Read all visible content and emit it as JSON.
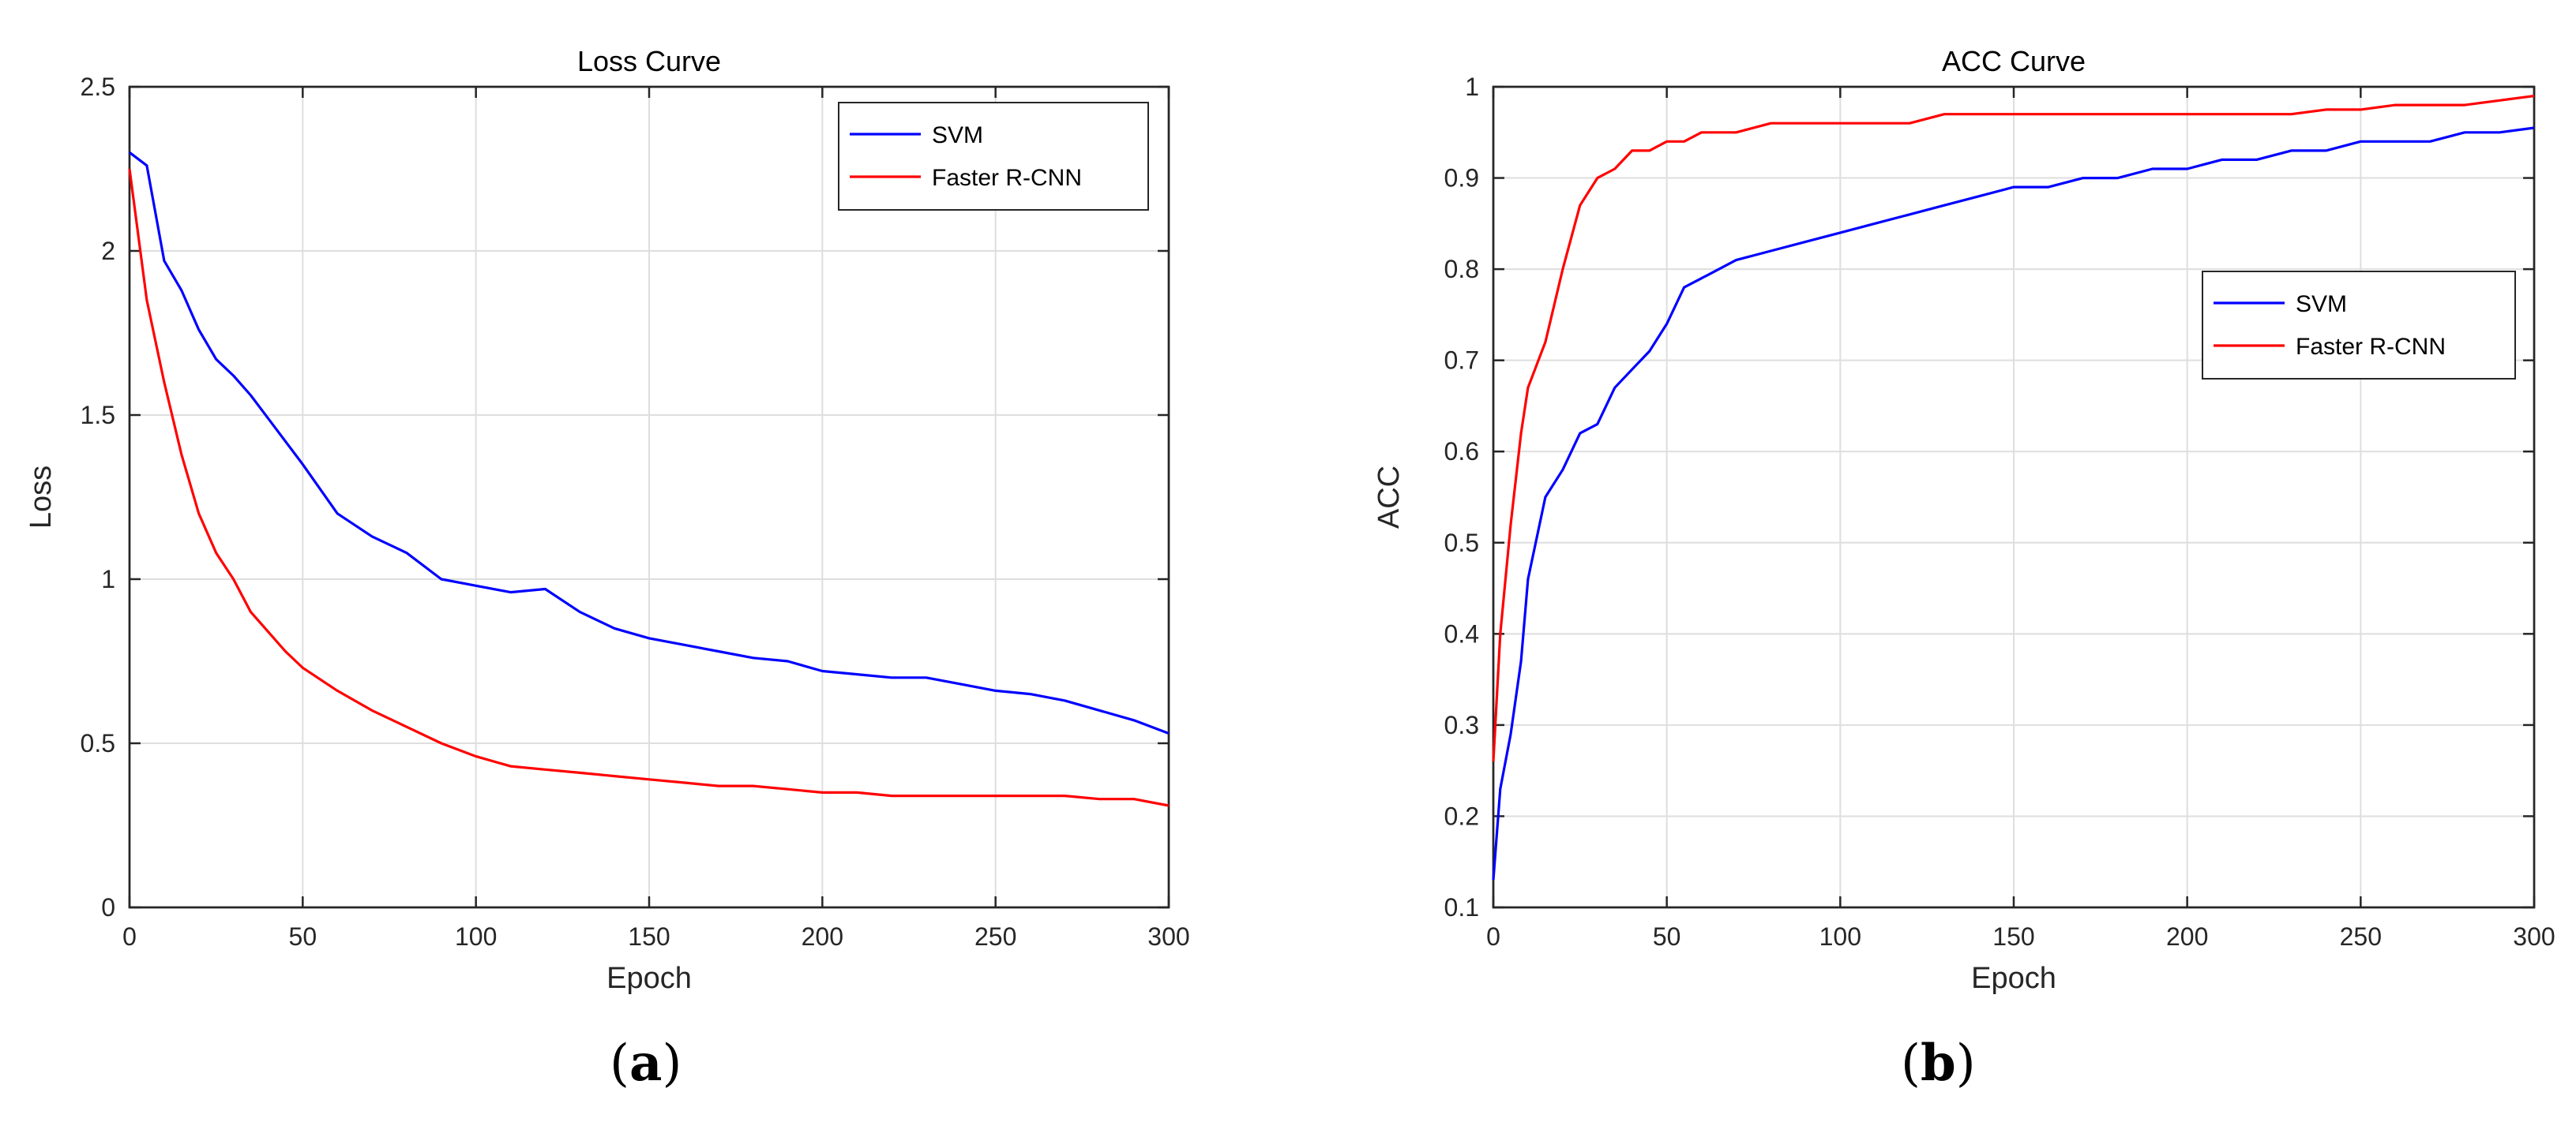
{
  "captions": {
    "a_open": "(",
    "a_letter": "a",
    "a_close": ")",
    "b_open": "(",
    "b_letter": "b",
    "b_close": ")"
  },
  "chart_data": [
    {
      "type": "line",
      "title": "Loss Curve",
      "xlabel": "Epoch",
      "ylabel": "Loss",
      "xlim": [
        0,
        300
      ],
      "ylim": [
        0,
        2.5
      ],
      "xticks": [
        "0",
        "50",
        "100",
        "150",
        "200",
        "250",
        "300"
      ],
      "yticks": [
        "0",
        "0.5",
        "1",
        "1.5",
        "2",
        "2.5"
      ],
      "grid": true,
      "legend_position": "top-right",
      "x": [
        0,
        5,
        10,
        15,
        20,
        25,
        30,
        35,
        40,
        45,
        50,
        60,
        70,
        80,
        90,
        100,
        110,
        120,
        130,
        140,
        150,
        160,
        170,
        180,
        190,
        200,
        210,
        220,
        230,
        240,
        250,
        260,
        270,
        280,
        290,
        300
      ],
      "series": [
        {
          "name": "SVM",
          "color": "#0000ff",
          "values": [
            2.3,
            2.26,
            1.97,
            1.88,
            1.76,
            1.67,
            1.62,
            1.56,
            1.49,
            1.42,
            1.35,
            1.2,
            1.13,
            1.08,
            1.0,
            0.98,
            0.96,
            0.97,
            0.9,
            0.85,
            0.82,
            0.8,
            0.78,
            0.76,
            0.75,
            0.72,
            0.71,
            0.7,
            0.7,
            0.68,
            0.66,
            0.65,
            0.63,
            0.6,
            0.57,
            0.53
          ]
        },
        {
          "name": "Faster R-CNN",
          "color": "#ff0000",
          "values": [
            2.25,
            1.85,
            1.6,
            1.38,
            1.2,
            1.08,
            1.0,
            0.9,
            0.84,
            0.78,
            0.73,
            0.66,
            0.6,
            0.55,
            0.5,
            0.46,
            0.43,
            0.42,
            0.41,
            0.4,
            0.39,
            0.38,
            0.37,
            0.37,
            0.36,
            0.35,
            0.35,
            0.34,
            0.34,
            0.34,
            0.34,
            0.34,
            0.34,
            0.33,
            0.33,
            0.31
          ]
        }
      ]
    },
    {
      "type": "line",
      "title": "ACC Curve",
      "xlabel": "Epoch",
      "ylabel": "ACC",
      "xlim": [
        0,
        300
      ],
      "ylim": [
        0.1,
        1
      ],
      "xticks": [
        "0",
        "50",
        "100",
        "150",
        "200",
        "250",
        "300"
      ],
      "yticks": [
        "0.1",
        "0.2",
        "0.3",
        "0.4",
        "0.5",
        "0.6",
        "0.7",
        "0.8",
        "0.9",
        "1"
      ],
      "grid": true,
      "legend_position": "right",
      "x": [
        0,
        2,
        5,
        8,
        10,
        15,
        20,
        25,
        30,
        35,
        40,
        45,
        50,
        55,
        60,
        70,
        80,
        90,
        100,
        110,
        120,
        130,
        140,
        150,
        160,
        170,
        180,
        190,
        200,
        210,
        220,
        230,
        240,
        250,
        260,
        270,
        280,
        290,
        300
      ],
      "series": [
        {
          "name": "SVM",
          "color": "#0000ff",
          "values": [
            0.13,
            0.23,
            0.29,
            0.37,
            0.46,
            0.55,
            0.58,
            0.62,
            0.63,
            0.67,
            0.69,
            0.71,
            0.74,
            0.78,
            0.79,
            0.81,
            0.82,
            0.83,
            0.84,
            0.85,
            0.86,
            0.87,
            0.88,
            0.89,
            0.89,
            0.9,
            0.9,
            0.91,
            0.91,
            0.92,
            0.92,
            0.93,
            0.93,
            0.94,
            0.94,
            0.94,
            0.95,
            0.95,
            0.955
          ]
        },
        {
          "name": "Faster R-CNN",
          "color": "#ff0000",
          "values": [
            0.26,
            0.4,
            0.52,
            0.62,
            0.67,
            0.72,
            0.8,
            0.87,
            0.9,
            0.91,
            0.93,
            0.93,
            0.94,
            0.94,
            0.95,
            0.95,
            0.96,
            0.96,
            0.96,
            0.96,
            0.96,
            0.97,
            0.97,
            0.97,
            0.97,
            0.97,
            0.97,
            0.97,
            0.97,
            0.97,
            0.97,
            0.97,
            0.975,
            0.975,
            0.98,
            0.98,
            0.98,
            0.985,
            0.99
          ]
        }
      ]
    }
  ]
}
